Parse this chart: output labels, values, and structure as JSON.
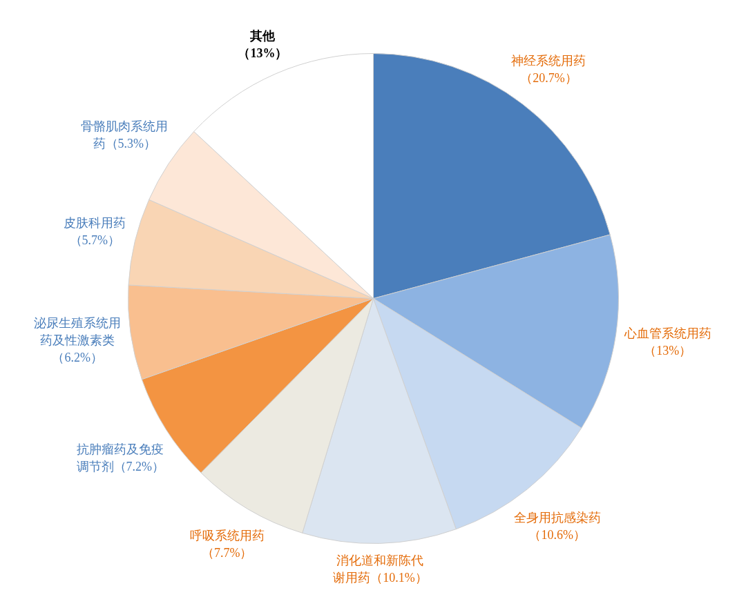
{
  "chart_data": {
    "type": "pie",
    "categories": [
      "神经系统用药",
      "心血管系统用药",
      "全身用抗感染药",
      "消化道和新陈代谢用药",
      "呼吸系统用药",
      "抗肿瘤药及免疫调节剂",
      "泌尿生殖系统用药及性激素类",
      "皮肤科用药",
      "骨骼肌肉系统用药",
      "其他"
    ],
    "values": [
      20.7,
      13,
      10.6,
      10.1,
      7.7,
      7.2,
      6.2,
      5.7,
      5.3,
      13
    ],
    "value_labels": [
      "（20.7%）",
      "（13%）",
      "（10.6%）",
      "（10.1%）",
      "（7.7%）",
      "（7.2%）",
      "（6.2%）",
      "（5.7%）",
      "（5.3%）",
      "（13%）"
    ],
    "colors": [
      "#4a7ebb",
      "#8db3e2",
      "#c6d9f1",
      "#dbe5f1",
      "#eceae1",
      "#f39442",
      "#f9bf8f",
      "#f9d5b4",
      "#fde7d7",
      "#ffffff"
    ]
  }
}
